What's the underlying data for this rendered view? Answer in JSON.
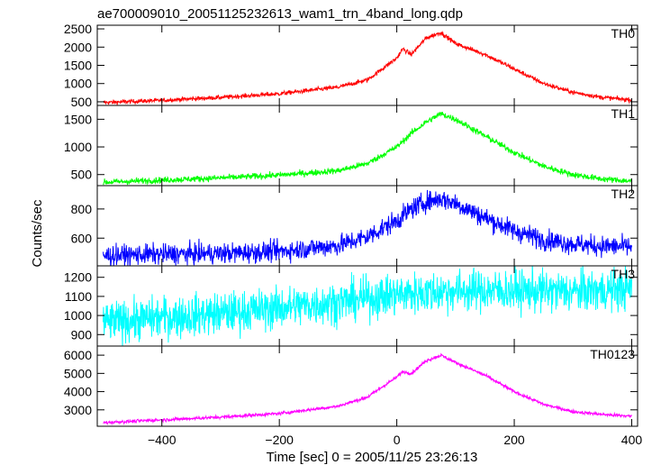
{
  "chart_data": {
    "type": "line",
    "title": "ae700009010_20051125232613_wam1_trn_4band_long.qdp",
    "xlabel": "Time [sec] 0 = 2005/11/25 23:26:13",
    "ylabel": "Counts/sec",
    "xlim": [
      -510,
      410
    ],
    "xticks": [
      -400,
      -200,
      0,
      200,
      400
    ],
    "xtick_labels": [
      "−400",
      "−200",
      "0",
      "200",
      "400"
    ],
    "grid": false,
    "panels": [
      {
        "name": "TH0",
        "color": "#ff0000",
        "ylim": [
          400,
          2600
        ],
        "yticks": [
          500,
          1000,
          1500,
          2000,
          2500
        ],
        "ytick_labels": [
          "500",
          "1000",
          "1500",
          "2000",
          "2500"
        ],
        "noise": 30,
        "profile": {
          "x": [
            -500,
            -400,
            -300,
            -200,
            -100,
            -50,
            0,
            10,
            25,
            50,
            75,
            100,
            150,
            200,
            250,
            300,
            350,
            400
          ],
          "y": [
            480,
            540,
            620,
            720,
            900,
            1100,
            1700,
            1950,
            1800,
            2250,
            2400,
            2100,
            1800,
            1400,
            1000,
            760,
            620,
            550
          ]
        }
      },
      {
        "name": "TH1",
        "color": "#00ff00",
        "ylim": [
          300,
          1750
        ],
        "yticks": [
          500,
          1000,
          1500
        ],
        "ytick_labels": [
          "500",
          "1000",
          "1500"
        ],
        "noise": 28,
        "profile": {
          "x": [
            -500,
            -400,
            -300,
            -200,
            -100,
            -50,
            0,
            25,
            50,
            75,
            100,
            150,
            200,
            250,
            300,
            350,
            400
          ],
          "y": [
            360,
            400,
            440,
            490,
            570,
            700,
            1000,
            1250,
            1450,
            1600,
            1500,
            1200,
            900,
            650,
            500,
            420,
            380
          ]
        }
      },
      {
        "name": "TH2",
        "color": "#0000ff",
        "ylim": [
          410,
          960
        ],
        "yticks": [
          600,
          800
        ],
        "ytick_labels": [
          "600",
          "800"
        ],
        "noise": 35,
        "profile": {
          "x": [
            -500,
            -400,
            -300,
            -200,
            -100,
            -50,
            0,
            25,
            50,
            75,
            100,
            150,
            200,
            250,
            300,
            350,
            400
          ],
          "y": [
            480,
            490,
            495,
            510,
            550,
            610,
            720,
            800,
            850,
            870,
            840,
            740,
            650,
            590,
            560,
            545,
            540
          ]
        }
      },
      {
        "name": "TH3",
        "color": "#00ffff",
        "ylim": [
          840,
          1260
        ],
        "yticks": [
          900,
          1000,
          1100,
          1200
        ],
        "ytick_labels": [
          "900",
          "1000",
          "1100",
          "1200"
        ],
        "noise": 55,
        "profile": {
          "x": [
            -500,
            -400,
            -300,
            -200,
            -100,
            0,
            100,
            200,
            300,
            400
          ],
          "y": [
            960,
            990,
            1010,
            1040,
            1070,
            1110,
            1130,
            1130,
            1125,
            1140
          ]
        }
      },
      {
        "name": "TH0123",
        "color": "#ff00ff",
        "ylim": [
          2100,
          6500
        ],
        "yticks": [
          3000,
          4000,
          5000,
          6000
        ],
        "ytick_labels": [
          "3000",
          "4000",
          "5000",
          "6000"
        ],
        "noise": 45,
        "profile": {
          "x": [
            -500,
            -400,
            -300,
            -200,
            -100,
            -50,
            0,
            10,
            25,
            50,
            75,
            100,
            150,
            200,
            250,
            300,
            350,
            400
          ],
          "y": [
            2300,
            2450,
            2600,
            2800,
            3200,
            3700,
            4800,
            5100,
            5000,
            5700,
            6000,
            5600,
            4900,
            4000,
            3300,
            2900,
            2750,
            2650
          ]
        }
      }
    ]
  }
}
